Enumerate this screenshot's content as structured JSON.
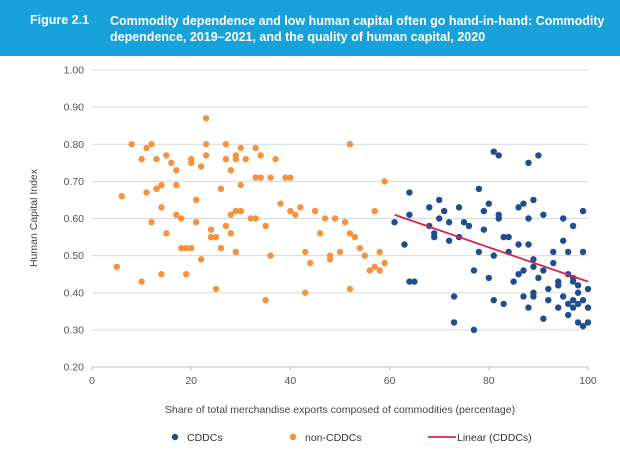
{
  "figure": {
    "number": "Figure 2.1",
    "title": "Commodity dependence and low human capital often go hand-in-hand: Commodity dependence, 2019–2021, and the quality of human capital, 2020"
  },
  "chart_data": {
    "type": "scatter",
    "xlabel": "Share of total merchandise exports composed of commodities (percentage)",
    "ylabel": "Human Capital Index",
    "xlim": [
      0,
      100
    ],
    "ylim": [
      0.2,
      1.0
    ],
    "x_ticks": [
      "0",
      "20",
      "40",
      "60",
      "80",
      "100"
    ],
    "y_ticks": [
      "0.20",
      "0.30",
      "0.40",
      "0.50",
      "0.60",
      "0.70",
      "0.80",
      "0.90",
      "1.00"
    ],
    "grid": true,
    "legend_position": "bottom",
    "series": [
      {
        "name": "CDDCs",
        "color": "#1f4e8c",
        "points": [
          [
            61,
            0.59
          ],
          [
            63,
            0.53
          ],
          [
            64,
            0.67
          ],
          [
            64,
            0.61
          ],
          [
            64,
            0.43
          ],
          [
            65,
            0.43
          ],
          [
            68,
            0.63
          ],
          [
            68,
            0.58
          ],
          [
            69,
            0.56
          ],
          [
            69,
            0.55
          ],
          [
            70,
            0.65
          ],
          [
            70,
            0.6
          ],
          [
            71,
            0.62
          ],
          [
            72,
            0.59
          ],
          [
            72,
            0.54
          ],
          [
            73,
            0.39
          ],
          [
            73,
            0.32
          ],
          [
            74,
            0.63
          ],
          [
            74,
            0.55
          ],
          [
            75,
            0.59
          ],
          [
            76,
            0.58
          ],
          [
            77,
            0.46
          ],
          [
            77,
            0.3
          ],
          [
            78,
            0.68
          ],
          [
            78,
            0.51
          ],
          [
            79,
            0.62
          ],
          [
            79,
            0.57
          ],
          [
            80,
            0.64
          ],
          [
            80,
            0.44
          ],
          [
            81,
            0.78
          ],
          [
            81,
            0.38
          ],
          [
            81,
            0.5
          ],
          [
            82,
            0.77
          ],
          [
            82,
            0.6
          ],
          [
            82,
            0.61
          ],
          [
            83,
            0.55
          ],
          [
            83,
            0.37
          ],
          [
            84,
            0.55
          ],
          [
            84,
            0.51
          ],
          [
            85,
            0.43
          ],
          [
            86,
            0.53
          ],
          [
            86,
            0.45
          ],
          [
            86,
            0.63
          ],
          [
            87,
            0.64
          ],
          [
            87,
            0.39
          ],
          [
            87,
            0.46
          ],
          [
            88,
            0.75
          ],
          [
            88,
            0.6
          ],
          [
            88,
            0.53
          ],
          [
            88,
            0.36
          ],
          [
            89,
            0.65
          ],
          [
            89,
            0.49
          ],
          [
            89,
            0.4
          ],
          [
            89,
            0.47
          ],
          [
            89,
            0.39
          ],
          [
            90,
            0.77
          ],
          [
            90,
            0.44
          ],
          [
            91,
            0.61
          ],
          [
            91,
            0.46
          ],
          [
            91,
            0.33
          ],
          [
            92,
            0.41
          ],
          [
            92,
            0.38
          ],
          [
            93,
            0.51
          ],
          [
            93,
            0.48
          ],
          [
            94,
            0.43
          ],
          [
            94,
            0.42
          ],
          [
            94,
            0.36
          ],
          [
            95,
            0.6
          ],
          [
            95,
            0.54
          ],
          [
            95,
            0.39
          ],
          [
            96,
            0.51
          ],
          [
            96,
            0.45
          ],
          [
            96,
            0.37
          ],
          [
            96,
            0.34
          ],
          [
            97,
            0.58
          ],
          [
            97,
            0.44
          ],
          [
            97,
            0.43
          ],
          [
            97,
            0.38
          ],
          [
            97,
            0.36
          ],
          [
            98,
            0.4
          ],
          [
            98,
            0.32
          ],
          [
            98,
            0.37
          ],
          [
            98,
            0.42
          ],
          [
            99,
            0.62
          ],
          [
            99,
            0.51
          ],
          [
            99,
            0.38
          ],
          [
            99,
            0.31
          ],
          [
            100,
            0.41
          ],
          [
            100,
            0.32
          ],
          [
            100,
            0.36
          ]
        ]
      },
      {
        "name": "non-CDDCs",
        "color": "#f5923e",
        "points": [
          [
            5,
            0.47
          ],
          [
            6,
            0.66
          ],
          [
            8,
            0.8
          ],
          [
            10,
            0.76
          ],
          [
            10,
            0.43
          ],
          [
            11,
            0.79
          ],
          [
            11,
            0.67
          ],
          [
            12,
            0.8
          ],
          [
            12,
            0.59
          ],
          [
            13,
            0.76
          ],
          [
            13,
            0.68
          ],
          [
            14,
            0.45
          ],
          [
            14,
            0.69
          ],
          [
            14,
            0.63
          ],
          [
            15,
            0.77
          ],
          [
            15,
            0.56
          ],
          [
            16,
            0.75
          ],
          [
            17,
            0.73
          ],
          [
            17,
            0.69
          ],
          [
            17,
            0.61
          ],
          [
            18,
            0.6
          ],
          [
            18,
            0.52
          ],
          [
            19,
            0.52
          ],
          [
            19,
            0.45
          ],
          [
            20,
            0.76
          ],
          [
            20,
            0.75
          ],
          [
            20,
            0.52
          ],
          [
            21,
            0.65
          ],
          [
            21,
            0.59
          ],
          [
            22,
            0.74
          ],
          [
            22,
            0.49
          ],
          [
            23,
            0.87
          ],
          [
            23,
            0.8
          ],
          [
            23,
            0.77
          ],
          [
            24,
            0.57
          ],
          [
            24,
            0.55
          ],
          [
            25,
            0.55
          ],
          [
            25,
            0.41
          ],
          [
            26,
            0.68
          ],
          [
            26,
            0.52
          ],
          [
            27,
            0.8
          ],
          [
            27,
            0.76
          ],
          [
            27,
            0.58
          ],
          [
            28,
            0.73
          ],
          [
            28,
            0.61
          ],
          [
            28,
            0.56
          ],
          [
            29,
            0.77
          ],
          [
            29,
            0.76
          ],
          [
            29,
            0.62
          ],
          [
            29,
            0.51
          ],
          [
            30,
            0.79
          ],
          [
            30,
            0.69
          ],
          [
            30,
            0.62
          ],
          [
            31,
            0.76
          ],
          [
            32,
            0.6
          ],
          [
            33,
            0.79
          ],
          [
            33,
            0.71
          ],
          [
            33,
            0.6
          ],
          [
            34,
            0.77
          ],
          [
            34,
            0.71
          ],
          [
            35,
            0.58
          ],
          [
            35,
            0.38
          ],
          [
            36,
            0.71
          ],
          [
            36,
            0.5
          ],
          [
            37,
            0.76
          ],
          [
            38,
            0.64
          ],
          [
            39,
            0.71
          ],
          [
            40,
            0.71
          ],
          [
            40,
            0.62
          ],
          [
            41,
            0.61
          ],
          [
            42,
            0.63
          ],
          [
            43,
            0.51
          ],
          [
            43,
            0.4
          ],
          [
            44,
            0.48
          ],
          [
            45,
            0.62
          ],
          [
            46,
            0.56
          ],
          [
            47,
            0.6
          ],
          [
            48,
            0.5
          ],
          [
            48,
            0.49
          ],
          [
            49,
            0.6
          ],
          [
            50,
            0.51
          ],
          [
            51,
            0.59
          ],
          [
            52,
            0.8
          ],
          [
            52,
            0.56
          ],
          [
            52,
            0.41
          ],
          [
            53,
            0.55
          ],
          [
            54,
            0.52
          ],
          [
            55,
            0.5
          ],
          [
            56,
            0.46
          ],
          [
            57,
            0.47
          ],
          [
            57,
            0.62
          ],
          [
            58,
            0.51
          ],
          [
            58,
            0.46
          ],
          [
            59,
            0.7
          ],
          [
            59,
            0.48
          ]
        ]
      },
      {
        "name": "Linear (CDDCs)",
        "type": "line",
        "color": "#d6244f",
        "points": [
          [
            61,
            0.61
          ],
          [
            100,
            0.43
          ]
        ]
      }
    ]
  }
}
